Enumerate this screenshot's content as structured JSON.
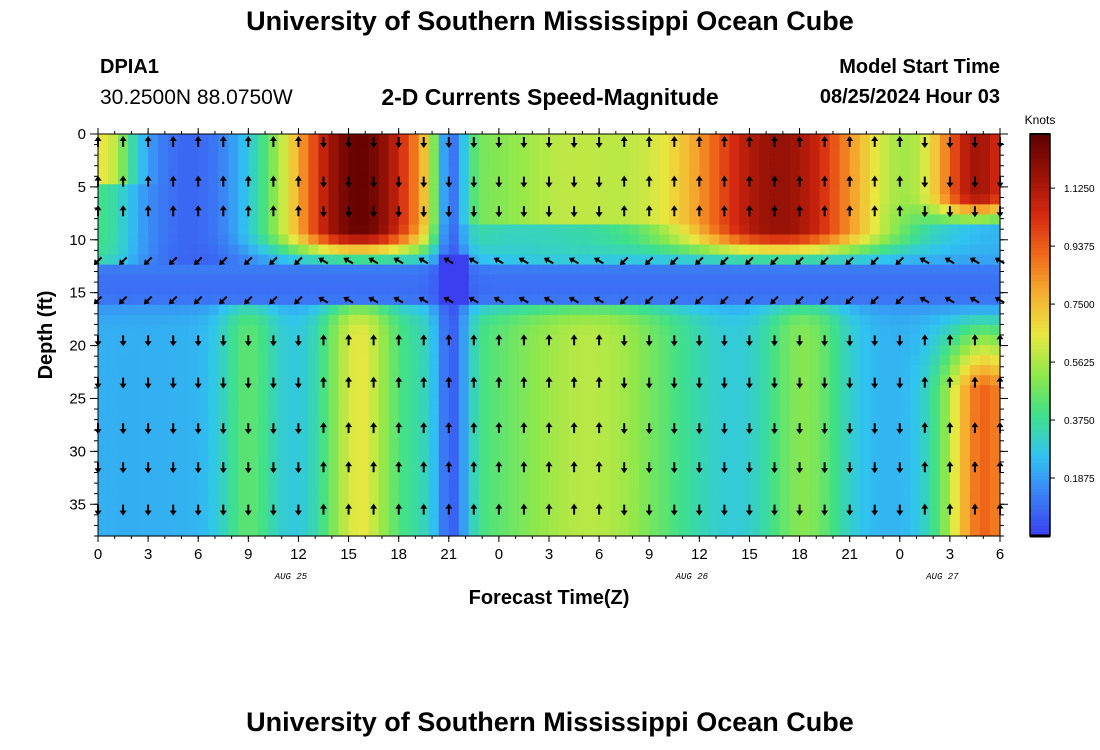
{
  "header": {
    "title": "University of Southern Mississippi Ocean Cube",
    "station": "DPIA1",
    "coordinates": "30.2500N  88.0750W",
    "subtitle": "2-D Currents Speed-Magnitude",
    "model_start_label": "Model Start Time",
    "model_start_value": "08/25/2024 Hour 03"
  },
  "footer": {
    "title": "University of Southern Mississippi Ocean Cube"
  },
  "chart_data": {
    "type": "heatmap",
    "xlabel": "Forecast Time(Z)",
    "ylabel": "Depth (ft)",
    "x_tick_labels": [
      "0",
      "3",
      "6",
      "9",
      "12",
      "15",
      "18",
      "21",
      "0",
      "3",
      "6",
      "9",
      "12",
      "15",
      "18",
      "21",
      "0",
      "3",
      "6"
    ],
    "date_labels": [
      {
        "label": "AUG 25",
        "at_tick": 3.85
      },
      {
        "label": "AUG 26",
        "at_tick": 11.85
      },
      {
        "label": "AUG 27",
        "at_tick": 16.85
      }
    ],
    "y_tick_labels": [
      "0",
      "5",
      "10",
      "15",
      "20",
      "25",
      "30",
      "35"
    ],
    "ylim": [
      0,
      38
    ],
    "colorbar": {
      "label": "Knots",
      "tick_labels": [
        "1.1250",
        "0.9375",
        "0.7500",
        "0.5625",
        "0.3750",
        "0.1875"
      ],
      "tick_values": [
        1.125,
        0.9375,
        0.75,
        0.5625,
        0.375,
        0.1875
      ],
      "range": [
        0,
        1.3
      ]
    },
    "colors": [
      "#3a3ff0",
      "#3b7ff5",
      "#30c4f0",
      "#3fe08a",
      "#8fe84a",
      "#e8e840",
      "#f5b030",
      "#f06a1a",
      "#d42810",
      "#981206",
      "#5e0000"
    ]
  }
}
